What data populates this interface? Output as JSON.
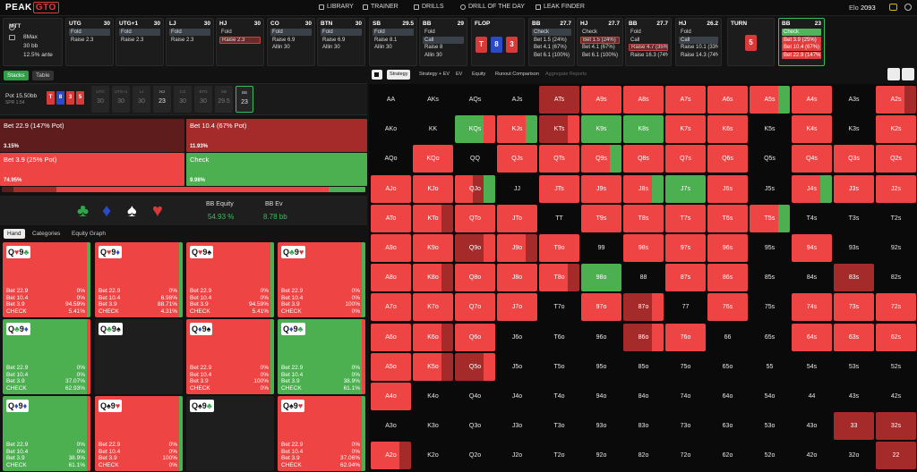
{
  "brand": {
    "name": "PEAK",
    "accent": "GTO"
  },
  "nav": [
    {
      "label": "LIBRARY",
      "icon": "book-icon"
    },
    {
      "label": "TRAINER",
      "icon": "trainer-icon"
    },
    {
      "label": "DRILLS",
      "icon": "drills-icon"
    },
    {
      "label": "DRILL OF THE DAY",
      "icon": "calendar-icon"
    },
    {
      "label": "LEAK FINDER",
      "icon": "leak-finder-icon"
    }
  ],
  "elo": {
    "label": "Elo",
    "value": "2093"
  },
  "game_info": {
    "type": "MTT",
    "players": "8Max",
    "stack": "30 bb",
    "ante": "12.5% ante"
  },
  "positions": [
    {
      "name": "UTG",
      "stack": "30",
      "actions": [
        "Fold",
        "Raise 2.3"
      ],
      "selected": 0,
      "sel": "grey"
    },
    {
      "name": "UTG+1",
      "stack": "30",
      "actions": [
        "Fold",
        "Raise 2.3"
      ],
      "selected": 0,
      "sel": "grey"
    },
    {
      "name": "LJ",
      "stack": "30",
      "actions": [
        "Fold",
        "Raise 2.3"
      ],
      "selected": 0,
      "sel": "grey"
    },
    {
      "name": "HJ",
      "stack": "30",
      "actions": [
        "Fold",
        "Raise 2.3"
      ],
      "selected": 1,
      "sel": "red"
    },
    {
      "name": "CO",
      "stack": "30",
      "actions": [
        "Fold",
        "Raise 6.9",
        "Allin 30"
      ],
      "selected": 0,
      "sel": "grey"
    },
    {
      "name": "BTN",
      "stack": "30",
      "actions": [
        "Fold",
        "Raise 6.9",
        "Allin 30"
      ],
      "selected": 0,
      "sel": "grey"
    },
    {
      "name": "SB",
      "stack": "29.5",
      "actions": [
        "Fold",
        "Raise 8.1",
        "Allin 30"
      ],
      "selected": 0,
      "sel": "grey"
    },
    {
      "name": "BB",
      "stack": "29",
      "actions": [
        "Fold",
        "Call",
        "Raise 8",
        "Allin 30"
      ],
      "selected": 1,
      "sel": "grey"
    },
    {
      "name": "BB",
      "stack": "27.7",
      "actions": [
        "Check",
        "Bet 1.5 (24%)",
        "Bet 4.1 (67%)",
        "Bet 6.1 (100%)"
      ],
      "selected": 0,
      "sel": "grey"
    },
    {
      "name": "HJ",
      "stack": "27.7",
      "actions": [
        "Check",
        "Bet 1.5 (24%)",
        "Bet 4.1 (67%)",
        "Bet 6.1 (100%)"
      ],
      "selected": 1,
      "sel": "red"
    },
    {
      "name": "BB",
      "stack": "27.7",
      "actions": [
        "Fold",
        "Call",
        "Raise 4.7 (35%)",
        "Raise 16.3 (74%)"
      ],
      "selected": 2,
      "sel": "red"
    },
    {
      "name": "HJ",
      "stack": "26.2",
      "actions": [
        "Fold",
        "Call",
        "Raise 10.1 (33%)",
        "Raise 14.3 (74%)"
      ],
      "selected": 1,
      "sel": "grey"
    },
    {
      "name": "BB",
      "stack": "23",
      "actions": [
        "Check",
        "Bet 3.9 (25%)",
        "Bet 10.4 (67%)",
        "Bet 22.9 (147%)"
      ],
      "selected": 0,
      "sel": "green"
    }
  ],
  "flop": {
    "label": "FLOP",
    "cards": [
      {
        "rank": "T",
        "color": "r"
      },
      {
        "rank": "8",
        "color": "b"
      },
      {
        "rank": "3",
        "color": "r"
      }
    ]
  },
  "turn": {
    "label": "TURN",
    "cards": [
      {
        "rank": "5",
        "color": "r"
      }
    ]
  },
  "left_tabs": {
    "stacks": "Stacks",
    "table": "Table"
  },
  "pot": {
    "label": "Pot",
    "value": "15.50bb",
    "spr": "SPR 1.54"
  },
  "pot_cards": [
    {
      "rank": "T",
      "color": "r"
    },
    {
      "rank": "8",
      "color": "b"
    },
    {
      "rank": "3",
      "color": "r"
    },
    {
      "rank": "5",
      "color": "r"
    }
  ],
  "seats": [
    {
      "name": "UTG",
      "stack": "30",
      "live": false,
      "hero": false
    },
    {
      "name": "UTG+1",
      "stack": "30",
      "live": false,
      "hero": false
    },
    {
      "name": "LJ",
      "stack": "30",
      "live": false,
      "hero": false
    },
    {
      "name": "HJ",
      "stack": "23",
      "live": true,
      "hero": false
    },
    {
      "name": "CO",
      "stack": "30",
      "live": false,
      "hero": false
    },
    {
      "name": "BTN",
      "stack": "30",
      "live": false,
      "hero": false
    },
    {
      "name": "SB",
      "stack": "29.5",
      "live": false,
      "hero": false
    },
    {
      "name": "BB",
      "stack": "23",
      "live": true,
      "hero": true
    }
  ],
  "strategy": [
    {
      "label": "Bet 22.9 (147% Pot)",
      "pct": "3.15%",
      "color": "#5e1c1c"
    },
    {
      "label": "Bet 10.4 (67% Pot)",
      "pct": "11.93%",
      "color": "#a52a2a"
    },
    {
      "label": "Bet 3.9 (25% Pot)",
      "pct": "74.95%",
      "color": "#ef4444"
    },
    {
      "label": "Check",
      "pct": "9.98%",
      "color": "#4caf50"
    }
  ],
  "freq": [
    3.15,
    11.93,
    74.95,
    9.98
  ],
  "suits": [
    {
      "glyph": "♣",
      "color": "#2ea84a",
      "icon": "club-icon"
    },
    {
      "glyph": "♦",
      "color": "#2b4ac8",
      "icon": "diamond-icon"
    },
    {
      "glyph": "♠",
      "color": "#ffffff",
      "icon": "spade-icon"
    },
    {
      "glyph": "♥",
      "color": "#d83a3a",
      "icon": "heart-icon"
    }
  ],
  "equity": {
    "label": "BB Equity",
    "value": "54.93 %"
  },
  "ev": {
    "label": "BB Ev",
    "value": "8.78 bb"
  },
  "sub_tabs": [
    "Hand",
    "Categories",
    "Equity Graph"
  ],
  "hands": [
    {
      "c1": {
        "r": "Q",
        "s": "♥",
        "col": "#d83a3a"
      },
      "c2": {
        "r": "9",
        "s": "♣",
        "col": "#2ea84a"
      },
      "bg": "red",
      "vals": [
        "0%",
        "0%",
        "94.59%",
        "5.41%"
      ]
    },
    {
      "c1": {
        "r": "Q",
        "s": "♥",
        "col": "#d83a3a"
      },
      "c2": {
        "r": "9",
        "s": "♦",
        "col": "#2b4ac8"
      },
      "bg": "red",
      "vals": [
        "0%",
        "6.98%",
        "88.71%",
        "4.31%"
      ]
    },
    {
      "c1": {
        "r": "Q",
        "s": "♥",
        "col": "#d83a3a"
      },
      "c2": {
        "r": "9",
        "s": "♠",
        "col": "#111111"
      },
      "bg": "red",
      "vals": [
        "0%",
        "0%",
        "94.59%",
        "5.41%"
      ]
    },
    {
      "c1": {
        "r": "Q",
        "s": "♣",
        "col": "#2ea84a"
      },
      "c2": {
        "r": "9",
        "s": "♥",
        "col": "#d83a3a"
      },
      "bg": "red",
      "vals": [
        "0%",
        "0%",
        "100%",
        "0%"
      ]
    },
    {
      "c1": {
        "r": "Q",
        "s": "♣",
        "col": "#2ea84a"
      },
      "c2": {
        "r": "9",
        "s": "♦",
        "col": "#2b4ac8"
      },
      "bg": "green",
      "vals": [
        "0%",
        "0%",
        "37.07%",
        "62.93%"
      ]
    },
    {
      "c1": {
        "r": "Q",
        "s": "♣",
        "col": "#2ea84a"
      },
      "c2": {
        "r": "9",
        "s": "♠",
        "col": "#111111"
      },
      "bg": "dark",
      "vals": []
    },
    {
      "c1": {
        "r": "Q",
        "s": "♦",
        "col": "#2b4ac8"
      },
      "c2": {
        "r": "9",
        "s": "♠",
        "col": "#111111"
      },
      "bg": "red",
      "vals": [
        "0%",
        "0%",
        "100%",
        "0%"
      ]
    },
    {
      "c1": {
        "r": "Q",
        "s": "♦",
        "col": "#2b4ac8"
      },
      "c2": {
        "r": "9",
        "s": "♣",
        "col": "#2ea84a"
      },
      "bg": "green",
      "vals": [
        "0%",
        "0%",
        "38.9%",
        "61.1%"
      ]
    },
    {
      "c1": {
        "r": "Q",
        "s": "♦",
        "col": "#2b4ac8"
      },
      "c2": {
        "r": "9",
        "s": "♦",
        "col": "#2b4ac8"
      },
      "bg": "green",
      "vals": [
        "0%",
        "0%",
        "38.9%",
        "61.1%"
      ]
    },
    {
      "c1": {
        "r": "Q",
        "s": "♠",
        "col": "#111111"
      },
      "c2": {
        "r": "9",
        "s": "♥",
        "col": "#d83a3a"
      },
      "bg": "red",
      "vals": [
        "0%",
        "0%",
        "100%",
        "0%"
      ]
    },
    {
      "c1": {
        "r": "Q",
        "s": "♠",
        "col": "#111111"
      },
      "c2": {
        "r": "9",
        "s": "♣",
        "col": "#2ea84a"
      },
      "bg": "dark",
      "vals": []
    },
    {
      "c1": {
        "r": "Q",
        "s": "♠",
        "col": "#111111"
      },
      "c2": {
        "r": "9",
        "s": "♥",
        "col": "#d83a3a"
      },
      "bg": "red",
      "vals": [
        "0%",
        "0%",
        "37.06%",
        "62.94%"
      ]
    }
  ],
  "hand_row_labels": [
    "Bet 22.9",
    "Bet 10.4",
    "Bet 3.9",
    "CHECK"
  ],
  "right_tabs": [
    {
      "label": "Strategy",
      "active": true,
      "dim": false
    },
    {
      "label": "Strategy + EV",
      "active": false,
      "dim": false
    },
    {
      "label": "EV",
      "active": false,
      "dim": false
    },
    {
      "label": "Equity",
      "active": false,
      "dim": false
    },
    {
      "label": "Runout Comparison",
      "active": false,
      "dim": false
    },
    {
      "label": "Aggregate Reports",
      "active": false,
      "dim": true
    }
  ],
  "colors": {
    "bet_large": "#5e1c1c",
    "bet_mid": "#a52a2a",
    "bet_small": "#ef4444",
    "check": "#4caf50",
    "empty": "#0a0a0a",
    "accent": "#3dbb5b"
  },
  "matrix": {
    "ranks": [
      "A",
      "K",
      "Q",
      "J",
      "T",
      "9",
      "8",
      "7",
      "6",
      "5",
      "4",
      "3",
      "2"
    ],
    "cells": [
      [
        "E",
        "E",
        "E",
        "E",
        "D",
        "R",
        "R",
        "R",
        "R",
        "RG",
        "R",
        "E",
        "RD"
      ],
      [
        "E",
        "E",
        "GR",
        "RG",
        "DR",
        "G",
        "G",
        "R",
        "R",
        "E",
        "R",
        "E",
        "R"
      ],
      [
        "E",
        "R",
        "E",
        "R",
        "R",
        "RG",
        "R",
        "R",
        "R",
        "E",
        "R",
        "R",
        "R"
      ],
      [
        "R",
        "R",
        "RDG",
        "E",
        "R",
        "R",
        "RG",
        "G",
        "R",
        "E",
        "RG",
        "R",
        "R"
      ],
      [
        "R",
        "RD",
        "R",
        "R",
        "E",
        "R",
        "R",
        "R",
        "R",
        "RG",
        "E",
        "E",
        "E"
      ],
      [
        "R",
        "R",
        "DR",
        "RD",
        "R",
        "E",
        "R",
        "R",
        "R",
        "E",
        "R",
        "E",
        "E"
      ],
      [
        "R",
        "RD",
        "R",
        "R",
        "RD",
        "G",
        "E",
        "R",
        "R",
        "E",
        "E",
        "D",
        "E"
      ],
      [
        "R",
        "R",
        "R",
        "R",
        "E",
        "R",
        "DR",
        "E",
        "R",
        "E",
        "R",
        "R",
        "R"
      ],
      [
        "R",
        "RD",
        "R",
        "E",
        "E",
        "E",
        "DR",
        "R",
        "E",
        "E",
        "R",
        "R",
        "R"
      ],
      [
        "R",
        "RD",
        "DR",
        "E",
        "E",
        "E",
        "E",
        "E",
        "E",
        "E",
        "E",
        "E",
        "E"
      ],
      [
        "R",
        "E",
        "E",
        "E",
        "E",
        "E",
        "E",
        "E",
        "E",
        "E",
        "E",
        "E",
        "E"
      ],
      [
        "E",
        "E",
        "E",
        "E",
        "E",
        "E",
        "E",
        "E",
        "E",
        "E",
        "E",
        "D",
        "D"
      ],
      [
        "RD",
        "E",
        "E",
        "E",
        "E",
        "E",
        "E",
        "E",
        "E",
        "E",
        "E",
        "E",
        "D"
      ]
    ]
  }
}
